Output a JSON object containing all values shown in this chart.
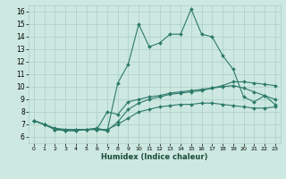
{
  "title": "",
  "xlabel": "Humidex (Indice chaleur)",
  "xlim": [
    -0.5,
    23.5
  ],
  "ylim": [
    5.5,
    16.5
  ],
  "xticks": [
    0,
    1,
    2,
    3,
    4,
    5,
    6,
    7,
    8,
    9,
    10,
    11,
    12,
    13,
    14,
    15,
    16,
    17,
    18,
    19,
    20,
    21,
    22,
    23
  ],
  "yticks": [
    6,
    7,
    8,
    9,
    10,
    11,
    12,
    13,
    14,
    15,
    16
  ],
  "bg_color": "#cce8e0",
  "line_color": "#2d7a6a",
  "grid_color": "#aacfc5",
  "series": [
    {
      "x": [
        0,
        1,
        2,
        3,
        4,
        5,
        6,
        7,
        8,
        9,
        10,
        11,
        12,
        13,
        14,
        15,
        16,
        17,
        18,
        19,
        20,
        21,
        22,
        23
      ],
      "y": [
        7.3,
        7.0,
        6.6,
        6.6,
        6.6,
        6.6,
        6.7,
        6.5,
        10.3,
        11.8,
        15.0,
        13.2,
        13.5,
        14.2,
        14.2,
        16.2,
        14.2,
        14.0,
        12.5,
        11.4,
        9.2,
        8.8,
        9.3,
        8.6
      ]
    },
    {
      "x": [
        0,
        1,
        2,
        3,
        4,
        5,
        6,
        7,
        8,
        9,
        10,
        11,
        12,
        13,
        14,
        15,
        16,
        17,
        18,
        19,
        20,
        21,
        22,
        23
      ],
      "y": [
        7.3,
        7.0,
        6.6,
        6.5,
        6.5,
        6.6,
        6.6,
        8.0,
        7.8,
        8.8,
        9.0,
        9.2,
        9.3,
        9.5,
        9.6,
        9.7,
        9.8,
        9.9,
        10.0,
        10.1,
        9.9,
        9.6,
        9.3,
        9.0
      ]
    },
    {
      "x": [
        0,
        1,
        2,
        3,
        4,
        5,
        6,
        7,
        8,
        9,
        10,
        11,
        12,
        13,
        14,
        15,
        16,
        17,
        18,
        19,
        20,
        21,
        22,
        23
      ],
      "y": [
        7.3,
        7.0,
        6.6,
        6.5,
        6.5,
        6.6,
        6.6,
        6.5,
        7.2,
        8.2,
        8.7,
        9.0,
        9.2,
        9.4,
        9.5,
        9.6,
        9.7,
        9.9,
        10.1,
        10.4,
        10.4,
        10.3,
        10.2,
        10.1
      ]
    },
    {
      "x": [
        0,
        1,
        2,
        3,
        4,
        5,
        6,
        7,
        8,
        9,
        10,
        11,
        12,
        13,
        14,
        15,
        16,
        17,
        18,
        19,
        20,
        21,
        22,
        23
      ],
      "y": [
        7.3,
        7.0,
        6.7,
        6.6,
        6.6,
        6.6,
        6.6,
        6.6,
        7.0,
        7.5,
        8.0,
        8.2,
        8.4,
        8.5,
        8.6,
        8.6,
        8.7,
        8.7,
        8.6,
        8.5,
        8.4,
        8.3,
        8.3,
        8.4
      ]
    }
  ]
}
